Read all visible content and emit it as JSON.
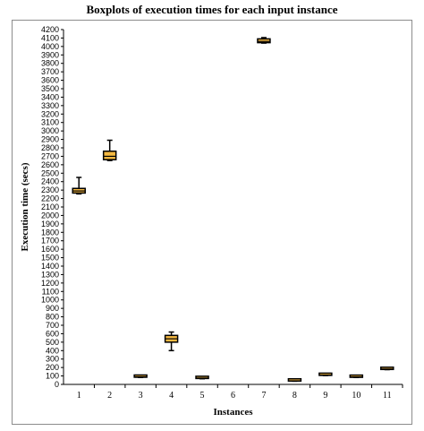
{
  "chart_data": {
    "type": "boxplot",
    "title": "Boxplots of execution times for each input instance",
    "xlabel": "Instances",
    "ylabel": "Execution time (secs)",
    "ylim": [
      0,
      4200
    ],
    "ytick_step": 100,
    "grid": false,
    "categories": [
      "1",
      "2",
      "3",
      "4",
      "5",
      "6",
      "7",
      "8",
      "9",
      "10",
      "11"
    ],
    "boxes": [
      {
        "category": "1",
        "min": 2255,
        "q1": 2265,
        "median": 2290,
        "q3": 2320,
        "max": 2450
      },
      {
        "category": "2",
        "min": 2650,
        "q1": 2660,
        "median": 2700,
        "q3": 2760,
        "max": 2890
      },
      {
        "category": "3",
        "min": 82,
        "q1": 85,
        "median": 90,
        "q3": 100,
        "max": 108
      },
      {
        "category": "4",
        "min": 400,
        "q1": 500,
        "median": 540,
        "q3": 580,
        "max": 620
      },
      {
        "category": "5",
        "min": 67,
        "q1": 70,
        "median": 75,
        "q3": 85,
        "max": 92
      },
      {
        "category": "6",
        "min": null,
        "q1": null,
        "median": null,
        "q3": null,
        "max": null
      },
      {
        "category": "7",
        "min": 4040,
        "q1": 4045,
        "median": 4060,
        "q3": 4090,
        "max": 4105
      },
      {
        "category": "8",
        "min": 38,
        "q1": 40,
        "median": 42,
        "q3": 46,
        "max": 48
      },
      {
        "category": "9",
        "min": 105,
        "q1": 107,
        "median": 110,
        "q3": 118,
        "max": 126
      },
      {
        "category": "10",
        "min": 82,
        "q1": 84,
        "median": 88,
        "q3": 95,
        "max": 100
      },
      {
        "category": "11",
        "min": 175,
        "q1": 177,
        "median": 182,
        "q3": 190,
        "max": 198
      }
    ],
    "colors": {
      "box_fill": "#f5b942",
      "box_stroke": "#000000",
      "axis": "#000000",
      "frame": "#8c8c8c"
    }
  }
}
